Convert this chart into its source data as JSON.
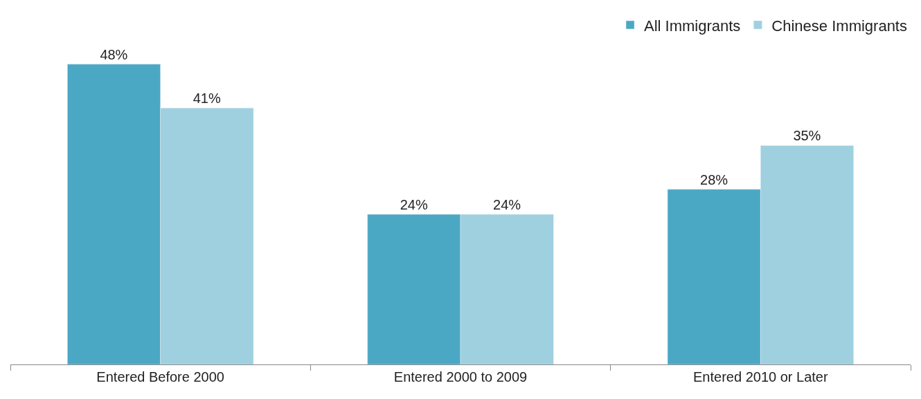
{
  "chart_data": {
    "type": "bar",
    "categories": [
      "Entered Before 2000",
      "Entered 2000 to 2009",
      "Entered 2010 or Later"
    ],
    "series": [
      {
        "name": "All Immigrants",
        "color": "#4aa8c4",
        "values": [
          48,
          24,
          28
        ],
        "value_labels": [
          "48%",
          "24%",
          "28%"
        ]
      },
      {
        "name": "Chinese Immigrants",
        "color": "#9fd0df",
        "values": [
          41,
          24,
          35
        ],
        "value_labels": [
          "41%",
          "24%",
          "35%"
        ]
      }
    ],
    "legend": "top right",
    "tick_labels": "x"
  }
}
